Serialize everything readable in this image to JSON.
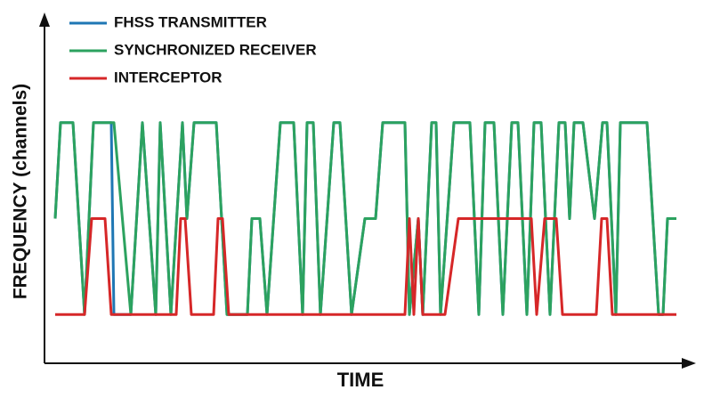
{
  "chart_data": {
    "type": "line",
    "x_label": "TIME",
    "y_label": "FREQUENCY (channels)",
    "xlim": [
      0,
      700
    ],
    "ylim": [
      0.5,
      3.5
    ],
    "legend": "top-left",
    "series": [
      {
        "name": "FHSS TRANSMITTER",
        "color": "#1f77b4",
        "x": [
          2,
          8,
          22,
          35,
          45,
          65,
          68,
          87,
          100,
          115,
          120,
          132,
          145,
          150,
          158,
          183,
          195,
          218,
          223,
          232,
          240,
          255,
          270,
          280,
          285,
          292,
          300,
          315,
          322,
          335,
          350,
          362,
          370,
          395,
          400,
          410,
          415,
          420,
          425,
          430,
          435,
          450,
          468,
          478,
          485,
          495,
          505,
          515,
          522,
          532,
          540,
          548,
          558,
          568,
          575,
          580,
          585,
          595,
          608,
          617,
          622,
          632,
          637,
          667,
          680,
          685,
          690,
          700
        ],
        "values": [
          2,
          3,
          3,
          1,
          3,
          3,
          1,
          1,
          3,
          1,
          3,
          1,
          3,
          2,
          3,
          3,
          1,
          1,
          2,
          2,
          1,
          3,
          3,
          1,
          3,
          3,
          1,
          3,
          3,
          1,
          2,
          2,
          3,
          3,
          1,
          2,
          1,
          2,
          3,
          3,
          1,
          3,
          3,
          1,
          3,
          3,
          1,
          3,
          3,
          1,
          3,
          3,
          1,
          3,
          3,
          2,
          3,
          3,
          2,
          3,
          3,
          1,
          3,
          3,
          1,
          1,
          2,
          2
        ]
      },
      {
        "name": "SYNCHRONIZED RECEIVER",
        "color": "#2ca25f",
        "x": [
          2,
          8,
          22,
          35,
          45,
          65,
          68,
          87,
          100,
          115,
          120,
          132,
          145,
          150,
          158,
          183,
          195,
          218,
          223,
          232,
          240,
          255,
          270,
          280,
          285,
          292,
          300,
          315,
          322,
          335,
          350,
          362,
          370,
          395,
          400,
          410,
          415,
          420,
          425,
          430,
          435,
          450,
          468,
          478,
          485,
          495,
          505,
          515,
          522,
          532,
          540,
          548,
          558,
          568,
          575,
          580,
          585,
          595,
          608,
          617,
          622,
          632,
          637,
          667,
          680,
          685,
          690,
          700
        ],
        "values": [
          2,
          3,
          3,
          1,
          3,
          3,
          3,
          1,
          3,
          1,
          3,
          1,
          3,
          2,
          3,
          3,
          1,
          1,
          2,
          2,
          1,
          3,
          3,
          1,
          3,
          3,
          1,
          3,
          3,
          1,
          2,
          2,
          3,
          3,
          1,
          2,
          1,
          2,
          3,
          3,
          1,
          3,
          3,
          1,
          3,
          3,
          1,
          3,
          3,
          1,
          3,
          3,
          1,
          3,
          3,
          2,
          3,
          3,
          2,
          3,
          3,
          1,
          3,
          3,
          1,
          1,
          2,
          2
        ]
      },
      {
        "name": "INTERCEPTOR",
        "color": "#d62728",
        "x": [
          2,
          35,
          43,
          58,
          65,
          138,
          143,
          148,
          155,
          180,
          185,
          190,
          197,
          395,
          400,
          405,
          410,
          415,
          440,
          455,
          537,
          543,
          552,
          565,
          572,
          610,
          616,
          622,
          628,
          700
        ],
        "values": [
          1,
          1,
          2,
          2,
          1,
          1,
          2,
          2,
          1,
          1,
          2,
          2,
          1,
          1,
          2,
          1,
          2,
          1,
          1,
          2,
          2,
          1,
          2,
          2,
          1,
          1,
          2,
          2,
          1,
          1
        ]
      }
    ]
  }
}
